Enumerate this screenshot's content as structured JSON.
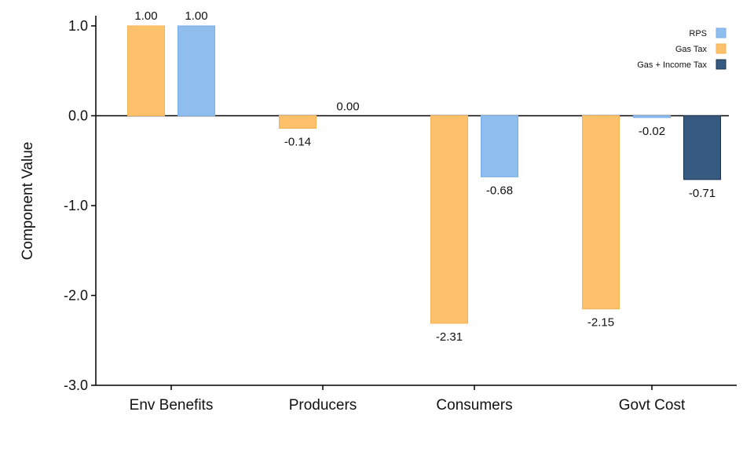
{
  "chart_data": {
    "type": "bar",
    "title": "",
    "xlabel": "",
    "ylabel": "Component Value",
    "ylim": [
      -3.0,
      1.0
    ],
    "yticks": [
      1.0,
      0.0,
      -1.0,
      -2.0,
      -3.0
    ],
    "ytick_labels": [
      "1.0",
      "0.0",
      "-1.0",
      "-2.0",
      "-3.0"
    ],
    "grid": false,
    "legend_position": "top-right",
    "categories": [
      "Env Benefits",
      "Producers",
      "Consumers",
      "Govt Cost"
    ],
    "series": [
      {
        "name": "Gas Tax",
        "color": "#fdc16b",
        "values": [
          1.0,
          -0.14,
          -2.31,
          -2.15
        ],
        "labels": [
          "",
          "-0.14",
          "-2.31",
          "-2.15"
        ]
      },
      {
        "name": "RPS",
        "color": "#8fbdee",
        "values": [
          1.0,
          0.0,
          -0.68,
          -0.02
        ],
        "labels": [
          "1.00",
          "0.00",
          "-0.68",
          "-0.02"
        ]
      },
      {
        "name": "Gas + Income Tax",
        "color": "#375a80",
        "values": [
          null,
          null,
          null,
          -0.71
        ],
        "labels": [
          "",
          "",
          "",
          "-0.71"
        ]
      }
    ],
    "extra_labels": [
      {
        "category": "Env Benefits",
        "series": "Gas Tax",
        "text": "1.00"
      }
    ],
    "legend": [
      {
        "name": "RPS",
        "color": "#8fbdee"
      },
      {
        "name": "Gas Tax",
        "color": "#fdc16b"
      },
      {
        "name": "Gas + Income Tax",
        "color": "#375a80"
      }
    ]
  }
}
